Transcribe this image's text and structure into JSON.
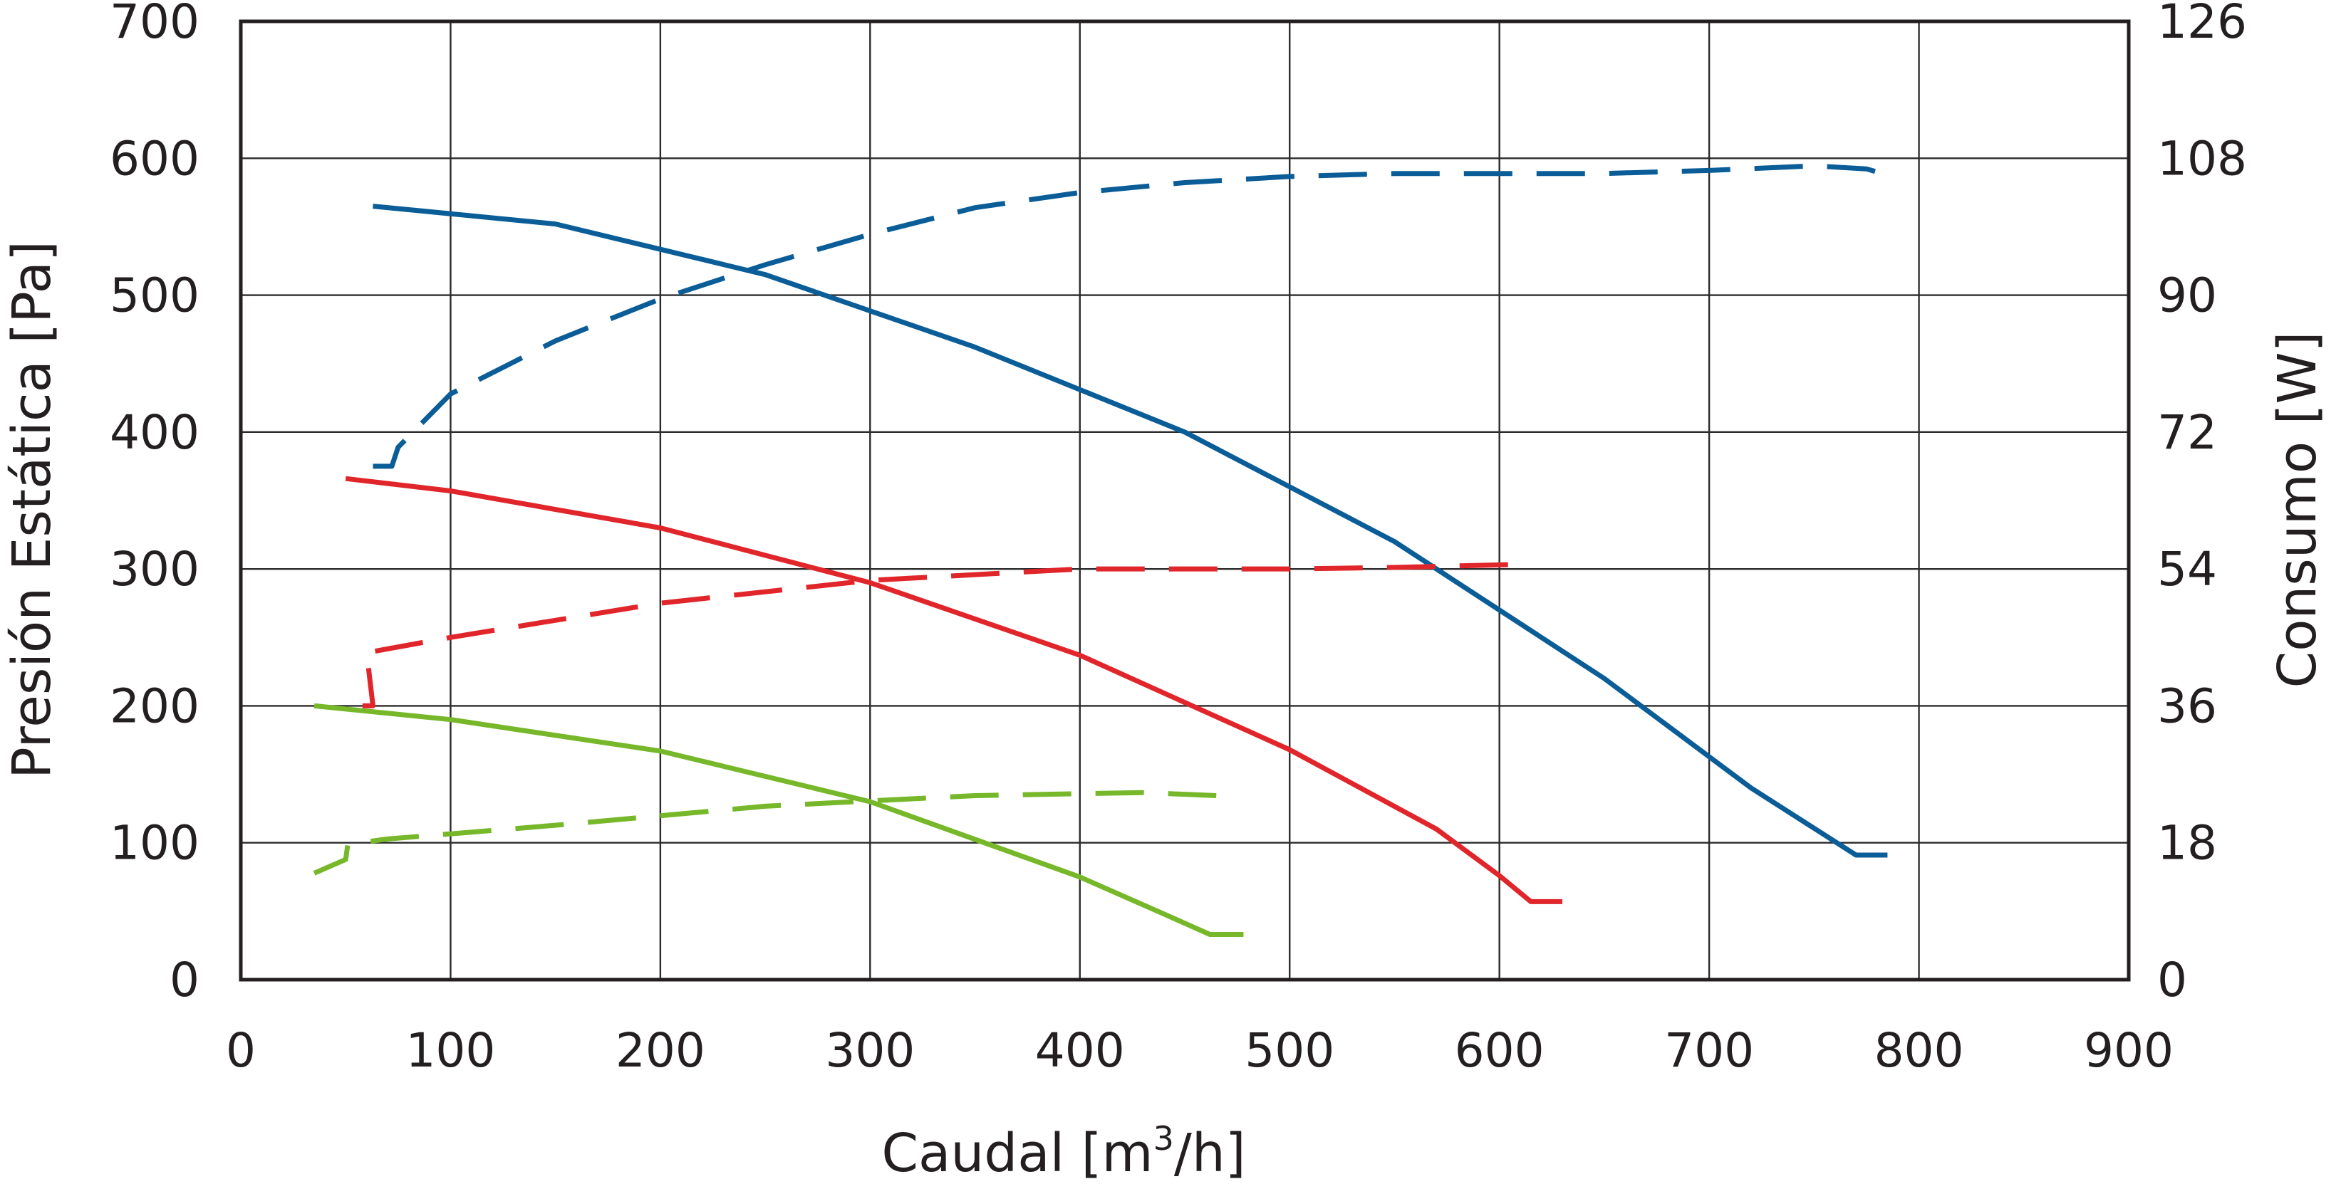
{
  "chart_data": {
    "type": "line",
    "xlabel_main": "Caudal [m",
    "xlabel_sup": "3",
    "xlabel_tail": "/h]",
    "ylabel": "Presión Estática [Pa]",
    "y2label": "Consumo [W]",
    "xlim": [
      0,
      900
    ],
    "ylim": [
      0,
      700
    ],
    "y2lim": [
      0,
      126
    ],
    "x_ticks": [
      "0",
      "100",
      "200",
      "300",
      "400",
      "500",
      "600",
      "700",
      "800",
      "900"
    ],
    "y_ticks": [
      "0",
      "100",
      "200",
      "300",
      "400",
      "500",
      "600",
      "700"
    ],
    "y2_ticks": [
      "0",
      "18",
      "36",
      "54",
      "72",
      "90",
      "108",
      "126"
    ],
    "grid": true,
    "series": [
      {
        "name": "pressure-blue",
        "axis": "left",
        "style": "solid",
        "color": "#0b5d98",
        "x": [
          63,
          150,
          250,
          350,
          450,
          550,
          650,
          720,
          770,
          785
        ],
        "y": [
          565,
          552,
          515,
          462,
          400,
          320,
          220,
          140,
          91,
          91
        ]
      },
      {
        "name": "pressure-red",
        "axis": "left",
        "style": "solid",
        "color": "#e1262b",
        "x": [
          50,
          100,
          200,
          300,
          400,
          500,
          570,
          600,
          615,
          630
        ],
        "y": [
          366,
          357,
          330,
          290,
          237,
          168,
          110,
          76,
          57,
          57
        ]
      },
      {
        "name": "pressure-green",
        "axis": "left",
        "style": "solid",
        "color": "#76b82a",
        "x": [
          35,
          100,
          200,
          300,
          400,
          440,
          462,
          478
        ],
        "y": [
          200,
          190,
          167,
          130,
          75,
          48,
          33,
          33
        ]
      },
      {
        "name": "consumption-blue",
        "axis": "right",
        "style": "dashed",
        "color": "#0b5d98",
        "x": [
          63,
          72,
          75,
          100,
          150,
          200,
          250,
          300,
          350,
          400,
          450,
          500,
          550,
          600,
          650,
          700,
          750,
          775,
          785
        ],
        "y": [
          67.5,
          67.5,
          70,
          77,
          84,
          89.5,
          94,
          98,
          101.5,
          103.5,
          104.8,
          105.6,
          106,
          106,
          106,
          106.4,
          107,
          106.6,
          105.8
        ]
      },
      {
        "name": "consumption-red",
        "axis": "right",
        "style": "dashed",
        "color": "#e1262b",
        "x": [
          58,
          63,
          60,
          100,
          200,
          300,
          400,
          500,
          550,
          610
        ],
        "y": [
          36,
          36,
          43,
          45,
          49.5,
          52.5,
          54,
          54,
          54.2,
          54.6
        ]
      },
      {
        "name": "consumption-green",
        "axis": "right",
        "style": "dashed",
        "color": "#76b82a",
        "x": [
          35,
          50,
          51,
          70,
          150,
          250,
          350,
          430,
          465
        ],
        "y": [
          14,
          15.8,
          17.8,
          18.5,
          20.3,
          22.8,
          24.2,
          24.6,
          24.2
        ]
      }
    ]
  }
}
